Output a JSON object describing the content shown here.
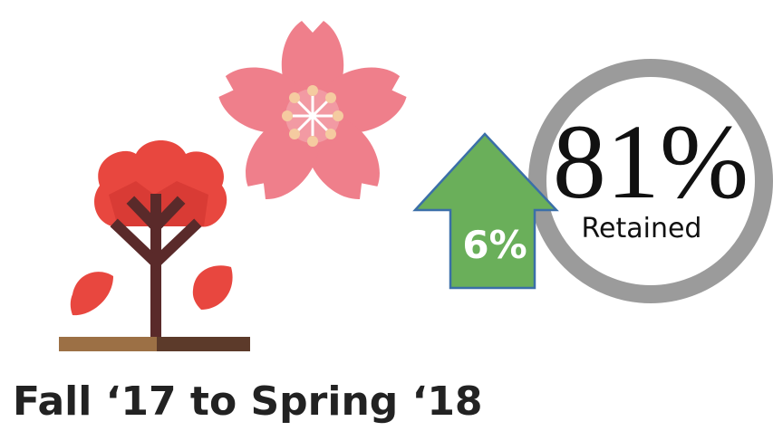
{
  "stat": {
    "value": "81%",
    "label": "Retained"
  },
  "change": "6%",
  "caption": "Fall ‘17 to Spring ‘18"
}
